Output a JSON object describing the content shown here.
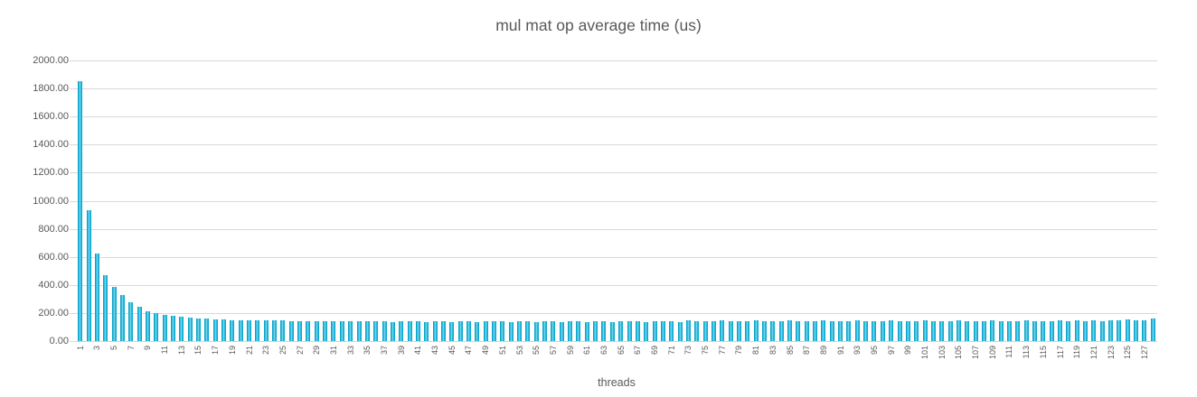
{
  "chart_data": {
    "type": "bar",
    "title": "mul mat op average time (us)",
    "xlabel": "threads",
    "ylabel": "",
    "ylim": [
      0,
      2000
    ],
    "ytick_step": 200,
    "ytick_labels": [
      "2000.00",
      "1800.00",
      "1600.00",
      "1400.00",
      "1200.00",
      "1000.00",
      "800.00",
      "600.00",
      "400.00",
      "200.00",
      "0.00"
    ],
    "xtick_labels_shown": "odd categories only, rotated 90 degrees",
    "grid": true,
    "legend": false,
    "categories": [
      1,
      2,
      3,
      4,
      5,
      6,
      7,
      8,
      9,
      10,
      11,
      12,
      13,
      14,
      15,
      16,
      17,
      18,
      19,
      20,
      21,
      22,
      23,
      24,
      25,
      26,
      27,
      28,
      29,
      30,
      31,
      32,
      33,
      34,
      35,
      36,
      37,
      38,
      39,
      40,
      41,
      42,
      43,
      44,
      45,
      46,
      47,
      48,
      49,
      50,
      51,
      52,
      53,
      54,
      55,
      56,
      57,
      58,
      59,
      60,
      61,
      62,
      63,
      64,
      65,
      66,
      67,
      68,
      69,
      70,
      71,
      72,
      73,
      74,
      75,
      76,
      77,
      78,
      79,
      80,
      81,
      82,
      83,
      84,
      85,
      86,
      87,
      88,
      89,
      90,
      91,
      92,
      93,
      94,
      95,
      96,
      97,
      98,
      99,
      100,
      101,
      102,
      103,
      104,
      105,
      106,
      107,
      108,
      109,
      110,
      111,
      112,
      113,
      114,
      115,
      116,
      117,
      118,
      119,
      120,
      121,
      122,
      123,
      124,
      125,
      126,
      127,
      128
    ],
    "values": [
      1855,
      930,
      625,
      468,
      384,
      326,
      274,
      242,
      214,
      199,
      188,
      178,
      171,
      166,
      162,
      158,
      155,
      152,
      150,
      149,
      148,
      147,
      147,
      146,
      145,
      144,
      143,
      143,
      142,
      142,
      141,
      141,
      140,
      142,
      139,
      140,
      141,
      138,
      140,
      139,
      142,
      138,
      139,
      140,
      138,
      141,
      139,
      138,
      142,
      139,
      140,
      138,
      141,
      139,
      138,
      140,
      142,
      138,
      139,
      141,
      138,
      140,
      139,
      138,
      143,
      139,
      141,
      138,
      144,
      139,
      140,
      138,
      146,
      140,
      139,
      141,
      147,
      139,
      140,
      142,
      148,
      139,
      141,
      140,
      147,
      139,
      140,
      141,
      148,
      140,
      139,
      142,
      147,
      140,
      141,
      139,
      146,
      141,
      140,
      142,
      145,
      141,
      143,
      140,
      146,
      142,
      141,
      144,
      147,
      142,
      143,
      141,
      148,
      142,
      144,
      143,
      149,
      143,
      145,
      144,
      150,
      144,
      146,
      148,
      152,
      147,
      150,
      158
    ],
    "colors": {
      "bar_edge": "#0099be",
      "bar_mid": "#1fb4da",
      "bar_highlight": "#7fdcf2",
      "gridline": "#d9d9d9",
      "axis_text": "#595959",
      "background": "#ffffff"
    }
  }
}
